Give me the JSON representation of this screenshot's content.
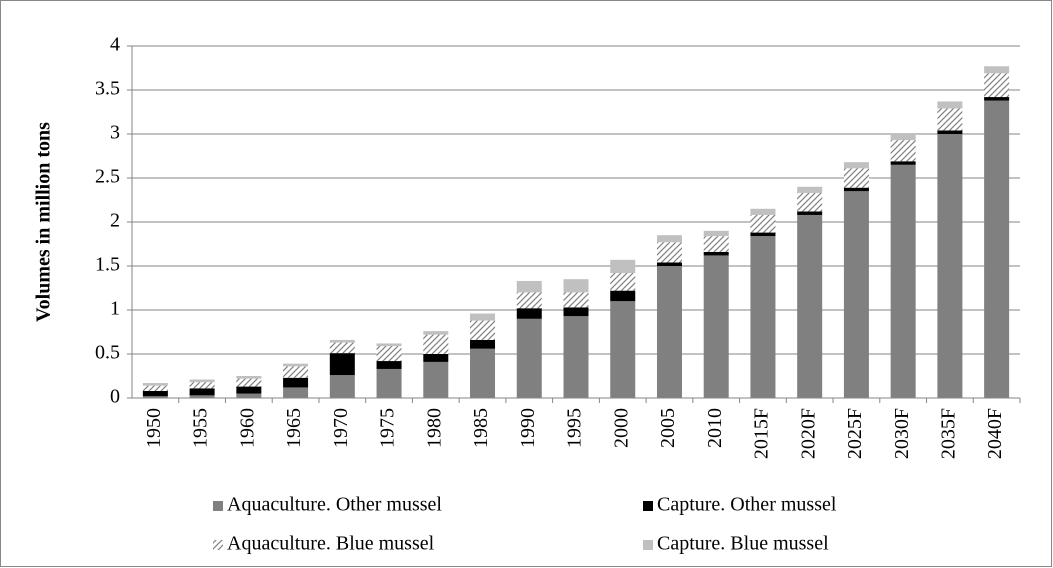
{
  "chart_data": {
    "type": "stacked_bar",
    "y_label": "Volumes in million tons",
    "categories": [
      "1950",
      "1955",
      "1960",
      "1965",
      "1970",
      "1975",
      "1980",
      "1985",
      "1990",
      "1995",
      "2000",
      "2005",
      "2010",
      "2015F",
      "2020F",
      "2025F",
      "2030F",
      "2035F",
      "2040F"
    ],
    "series": [
      {
        "name": "Aquaculture. Other mussel",
        "color": "#808080",
        "values": [
          0.02,
          0.03,
          0.05,
          0.12,
          0.26,
          0.33,
          0.41,
          0.56,
          0.9,
          0.93,
          1.1,
          1.5,
          1.62,
          1.84,
          2.08,
          2.35,
          2.65,
          3.0,
          3.38
        ]
      },
      {
        "name": "Capture. Other mussel",
        "color": "#000000",
        "values": [
          0.06,
          0.08,
          0.08,
          0.11,
          0.25,
          0.09,
          0.09,
          0.1,
          0.12,
          0.1,
          0.12,
          0.04,
          0.04,
          0.04,
          0.04,
          0.04,
          0.04,
          0.04,
          0.04
        ]
      },
      {
        "name": "Aquaculture. Blue mussel",
        "color": "#808080",
        "pattern": "hatch",
        "values": [
          0.06,
          0.07,
          0.09,
          0.13,
          0.12,
          0.17,
          0.22,
          0.22,
          0.18,
          0.17,
          0.2,
          0.23,
          0.18,
          0.2,
          0.21,
          0.22,
          0.24,
          0.25,
          0.27
        ]
      },
      {
        "name": "Capture. Blue mussel",
        "color": "#c0c0c0",
        "values": [
          0.03,
          0.03,
          0.03,
          0.03,
          0.03,
          0.03,
          0.04,
          0.08,
          0.13,
          0.15,
          0.15,
          0.08,
          0.06,
          0.07,
          0.07,
          0.07,
          0.07,
          0.08,
          0.08
        ]
      }
    ],
    "ylim": [
      0,
      4
    ],
    "yticks": [
      0,
      0.5,
      1,
      1.5,
      2,
      2.5,
      3,
      3.5,
      4
    ],
    "grid": true
  }
}
